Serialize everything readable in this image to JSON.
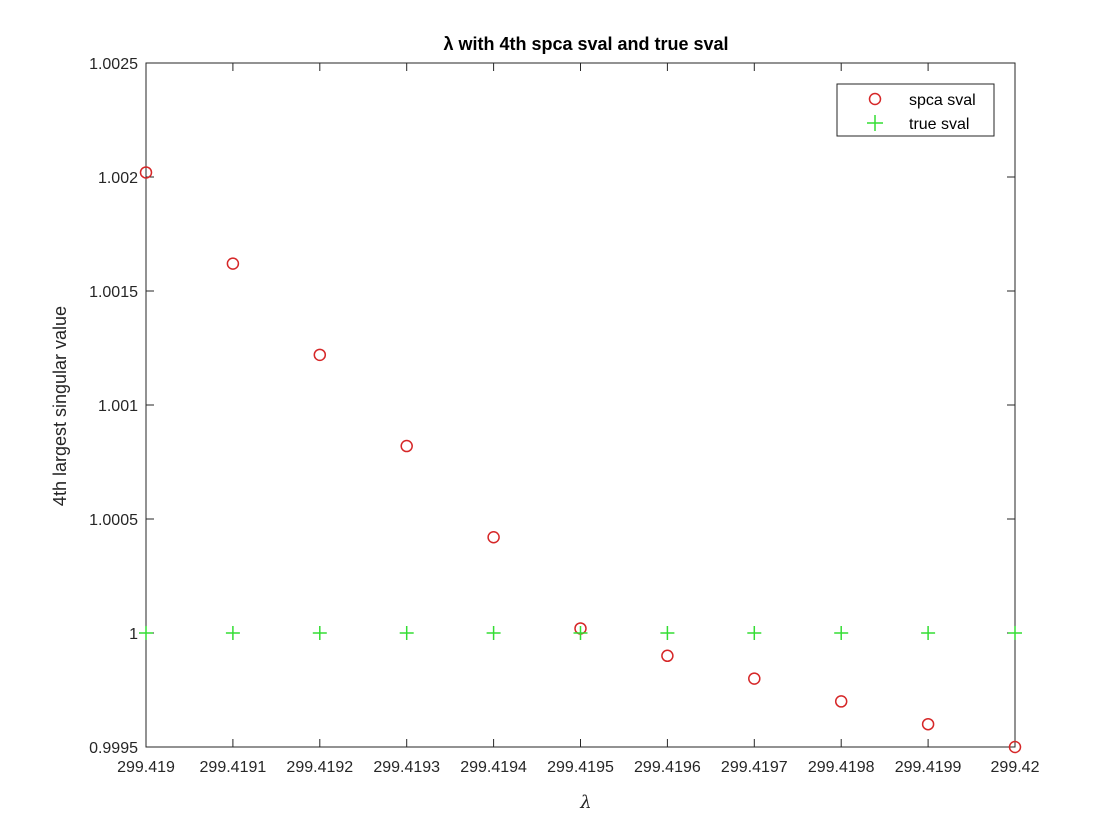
{
  "chart_data": {
    "type": "scatter",
    "title": "λ with 4th spca sval and true sval",
    "xlabel": "λ",
    "ylabel": "4th largest singular value",
    "xlim": [
      299.419,
      299.42
    ],
    "ylim": [
      0.9995,
      1.0025
    ],
    "x_ticks": [
      "299.419",
      "299.4191",
      "299.4192",
      "299.4193",
      "299.4194",
      "299.4195",
      "299.4196",
      "299.4197",
      "299.4198",
      "299.4199",
      "299.42"
    ],
    "y_ticks": [
      "0.9995",
      "1",
      "1.0005",
      "1.001",
      "1.0015",
      "1.002",
      "1.0025"
    ],
    "x": [
      299.419,
      299.4191,
      299.4192,
      299.4193,
      299.4194,
      299.4195,
      299.4196,
      299.4197,
      299.4198,
      299.4199,
      299.42
    ],
    "grid": false,
    "legend_position": "top-right",
    "series": [
      {
        "name": "spca sval",
        "marker": "circle",
        "color": "#d62728",
        "values": [
          1.00202,
          1.00162,
          1.00122,
          1.00082,
          1.00042,
          1.00002,
          0.9999,
          0.9998,
          0.9997,
          0.9996,
          0.9995
        ]
      },
      {
        "name": "true sval",
        "marker": "plus",
        "color": "#33dd33",
        "values": [
          1,
          1,
          1,
          1,
          1,
          1,
          1,
          1,
          1,
          1,
          1
        ]
      }
    ]
  }
}
